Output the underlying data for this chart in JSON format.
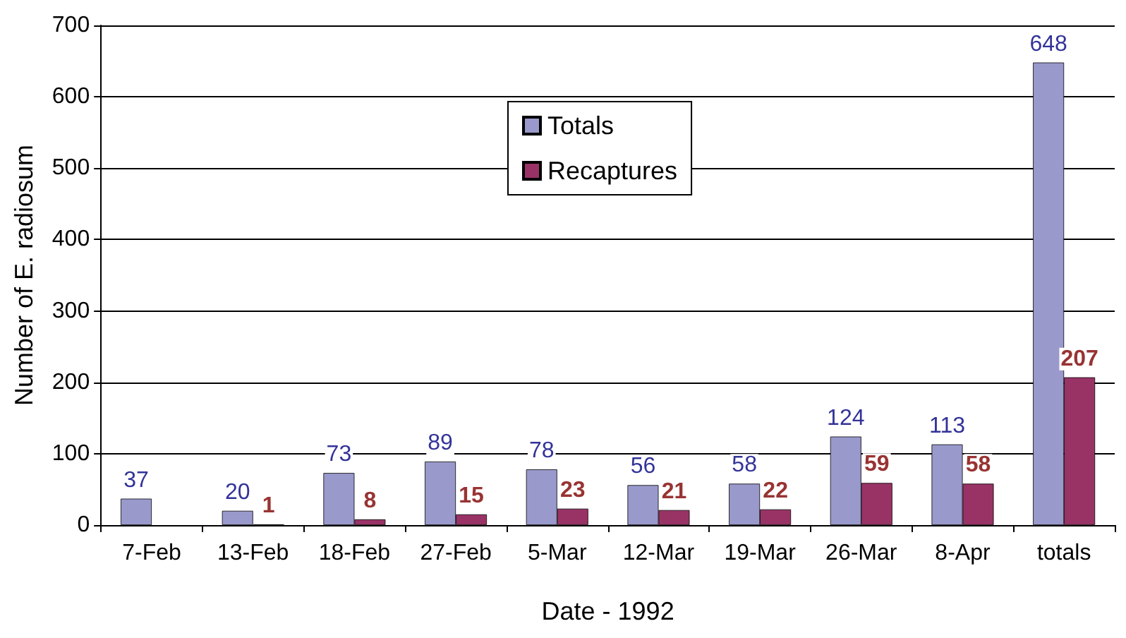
{
  "chart_data": {
    "type": "bar",
    "xlabel": "Date - 1992",
    "ylabel": "Number of E. radiosum",
    "categories": [
      "7-Feb",
      "13-Feb",
      "18-Feb",
      "27-Feb",
      "5-Mar",
      "12-Mar",
      "19-Mar",
      "26-Mar",
      "8-Apr",
      "totals"
    ],
    "series": [
      {
        "name": "Totals",
        "color": "#9999cc",
        "values": [
          37,
          20,
          73,
          89,
          78,
          56,
          58,
          124,
          113,
          648
        ]
      },
      {
        "name": "Recaptures",
        "color": "#993366",
        "values": [
          null,
          1,
          8,
          15,
          23,
          21,
          22,
          59,
          58,
          207
        ]
      }
    ],
    "ylim": [
      0,
      700
    ],
    "yticks": [
      0,
      100,
      200,
      300,
      400,
      500,
      600,
      700
    ],
    "grid": "y",
    "legend": "top",
    "data_labels": true
  }
}
